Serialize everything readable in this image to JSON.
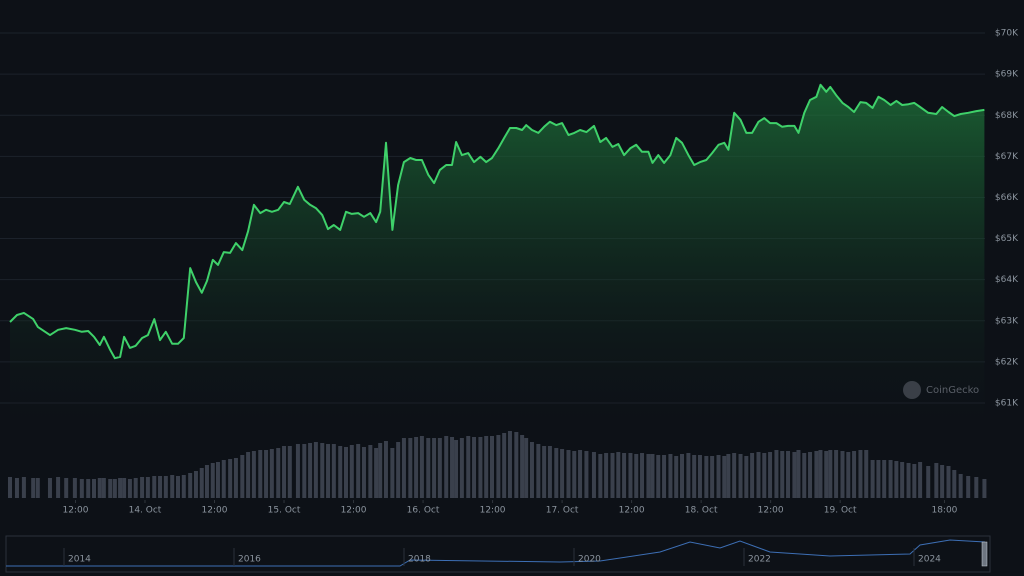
{
  "chart_data": {
    "type": "line",
    "color": "#3fd16a",
    "volume_color": "#3a404c",
    "grid": true,
    "xlim": [
      0.7,
      169
    ],
    "ylim": [
      60500,
      70500
    ],
    "yticks": [
      {
        "value": 61000,
        "label": "$61K"
      },
      {
        "value": 62000,
        "label": "$62K"
      },
      {
        "value": 63000,
        "label": "$63K"
      },
      {
        "value": 64000,
        "label": "$64K"
      },
      {
        "value": 65000,
        "label": "$65K"
      },
      {
        "value": 66000,
        "label": "$66K"
      },
      {
        "value": 67000,
        "label": "$67K"
      },
      {
        "value": 68000,
        "label": "$68K"
      },
      {
        "value": 69000,
        "label": "$69K"
      },
      {
        "value": 70000,
        "label": "$70K"
      }
    ],
    "xticks": [
      {
        "value": 12,
        "label": "12:00"
      },
      {
        "value": 24,
        "label": "14. Oct"
      },
      {
        "value": 36,
        "label": "12:00"
      },
      {
        "value": 48,
        "label": "15. Oct"
      },
      {
        "value": 60,
        "label": "12:00"
      },
      {
        "value": 72,
        "label": "16. Oct"
      },
      {
        "value": 84,
        "label": "12:00"
      },
      {
        "value": 96,
        "label": "17. Oct"
      },
      {
        "value": 108,
        "label": "12:00"
      },
      {
        "value": 120,
        "label": "18. Oct"
      },
      {
        "value": 132,
        "label": "12:00"
      },
      {
        "value": 144,
        "label": "19. Oct"
      },
      {
        "value": 162,
        "label": "18:00"
      }
    ],
    "x": [
      0.7,
      1.9,
      3.1,
      4.7,
      5.5,
      7.6,
      9.0,
      10.4,
      11.9,
      13.1,
      14.2,
      15.2,
      16.2,
      16.9,
      18.0,
      18.8,
      19.7,
      20.4,
      21.4,
      22.4,
      23.5,
      24.5,
      25.6,
      26.6,
      27.6,
      28.7,
      29.7,
      30.7,
      31.8,
      32.8,
      33.8,
      34.7,
      35.7,
      36.6,
      37.6,
      38.7,
      39.7,
      40.8,
      41.8,
      42.8,
      43.9,
      44.9,
      45.9,
      47.0,
      48.0,
      49.0,
      50.4,
      51.5,
      52.5,
      53.5,
      54.6,
      55.6,
      56.6,
      57.7,
      58.7,
      59.7,
      60.8,
      61.8,
      62.9,
      63.9,
      64.6,
      65.6,
      66.7,
      67.7,
      68.7,
      69.8,
      70.8,
      71.8,
      72.9,
      73.9,
      74.9,
      76.0,
      77.0,
      77.7,
      78.7,
      79.8,
      80.8,
      81.9,
      82.9,
      83.9,
      85.0,
      86.0,
      87.0,
      88.1,
      89.1,
      89.8,
      90.8,
      91.9,
      92.9,
      93.9,
      95.0,
      96.0,
      97.1,
      98.1,
      99.1,
      100.2,
      101.5,
      102.6,
      103.6,
      104.7,
      105.7,
      106.7,
      107.8,
      108.8,
      109.8,
      110.9,
      111.6,
      112.6,
      113.6,
      114.7,
      115.7,
      116.7,
      117.8,
      118.8,
      119.8,
      120.9,
      121.9,
      123.0,
      124.0,
      124.7,
      125.7,
      126.8,
      127.8,
      128.8,
      129.9,
      130.9,
      131.9,
      133.0,
      134.0,
      135.0,
      136.1,
      136.8,
      137.8,
      138.8,
      139.9,
      140.6,
      141.6,
      142.3,
      143.3,
      144.4,
      145.4,
      146.4,
      147.5,
      148.5,
      149.6,
      150.6,
      151.6,
      152.7,
      153.7,
      154.7,
      155.8,
      156.8,
      157.8,
      159.2,
      160.6,
      161.6,
      162.7,
      163.7,
      164.8,
      166.1,
      167.5,
      168.9
    ],
    "values": [
      62970,
      63140,
      63190,
      63040,
      62850,
      62650,
      62780,
      62820,
      62780,
      62730,
      62750,
      62610,
      62410,
      62610,
      62290,
      62090,
      62120,
      62610,
      62340,
      62390,
      62580,
      62650,
      63040,
      62530,
      62730,
      62440,
      62440,
      62580,
      64280,
      63940,
      63680,
      63970,
      64480,
      64360,
      64670,
      64650,
      64890,
      64720,
      65180,
      65820,
      65620,
      65700,
      65650,
      65700,
      65890,
      65840,
      66260,
      65940,
      65820,
      65740,
      65570,
      65230,
      65330,
      65210,
      65650,
      65600,
      65620,
      65530,
      65620,
      65400,
      65650,
      67330,
      65210,
      66300,
      66860,
      66960,
      66910,
      66910,
      66550,
      66350,
      66670,
      66790,
      66790,
      67350,
      67030,
      67080,
      66860,
      66990,
      66860,
      66960,
      67200,
      67450,
      67690,
      67690,
      67640,
      67760,
      67640,
      67570,
      67720,
      67840,
      67760,
      67810,
      67520,
      67570,
      67640,
      67590,
      67740,
      67350,
      67450,
      67230,
      67300,
      67030,
      67200,
      67280,
      67110,
      67110,
      66840,
      67030,
      66840,
      67030,
      67450,
      67330,
      67030,
      66790,
      66860,
      66910,
      67080,
      67280,
      67330,
      67160,
      68060,
      67890,
      67570,
      67570,
      67840,
      67930,
      67810,
      67810,
      67720,
      67740,
      67740,
      67570,
      68060,
      68370,
      68450,
      68740,
      68570,
      68690,
      68490,
      68300,
      68200,
      68080,
      68320,
      68300,
      68180,
      68450,
      68370,
      68250,
      68350,
      68250,
      68270,
      68300,
      68200,
      68060,
      68030,
      68200,
      68080,
      67980,
      68030,
      68060,
      68100,
      68130
    ],
    "volume": [
      21,
      20,
      21,
      20,
      20,
      20,
      21,
      20,
      20,
      19,
      19,
      19,
      20,
      20,
      19,
      19,
      20,
      20,
      19,
      20,
      21,
      21,
      22,
      22,
      22,
      23,
      22,
      23,
      25,
      27,
      30,
      33,
      35,
      36,
      38,
      39,
      40,
      43,
      46,
      47,
      48,
      48,
      49,
      50,
      52,
      52,
      54,
      54,
      55,
      56,
      55,
      54,
      54,
      52,
      51,
      53,
      54,
      51,
      53,
      50,
      55,
      57,
      50,
      56,
      60,
      60,
      61,
      62,
      60,
      60,
      60,
      62,
      61,
      58,
      60,
      62,
      61,
      61,
      62,
      62,
      63,
      65,
      67,
      66,
      63,
      60,
      56,
      54,
      52,
      52,
      50,
      49,
      48,
      47,
      48,
      47,
      46,
      44,
      45,
      45,
      46,
      45,
      45,
      44,
      45,
      44,
      44,
      43,
      43,
      44,
      42,
      44,
      45,
      43,
      43,
      42,
      42,
      43,
      42,
      44,
      45,
      44,
      42,
      45,
      46,
      45,
      46,
      48,
      47,
      47,
      46,
      48,
      45,
      46,
      47,
      48,
      47,
      48,
      48,
      47,
      46,
      47,
      48,
      48,
      38,
      38,
      38,
      38,
      37,
      36,
      35,
      34,
      36,
      32,
      35,
      33,
      32,
      28,
      24,
      22,
      21,
      19
    ],
    "watermark": "CoinGecko",
    "navigator_labels": [
      "2014",
      "2016",
      "2018",
      "2020",
      "2022",
      "2024"
    ]
  }
}
